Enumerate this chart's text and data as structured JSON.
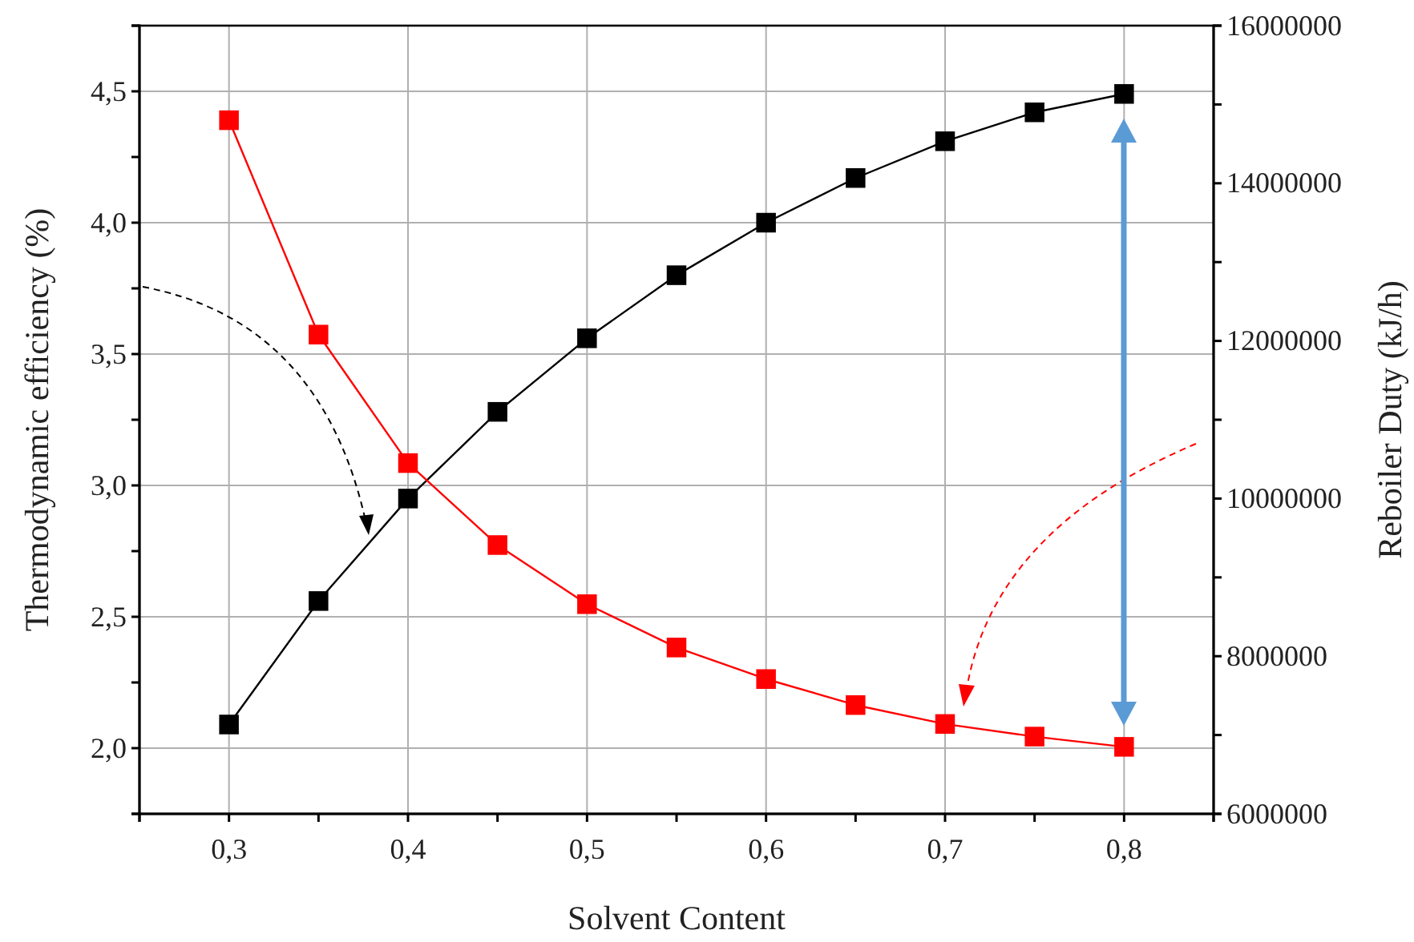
{
  "chart_data": {
    "type": "line",
    "xlabel": "Solvent Content",
    "ylabel": "Thermodynamic efficiency (%)",
    "y2label": "Reboiler Duty (kJ/h)",
    "x": [
      0.3,
      0.35,
      0.4,
      0.45,
      0.5,
      0.55,
      0.6,
      0.65,
      0.7,
      0.75,
      0.8
    ],
    "series": [
      {
        "color": "#000000",
        "values": [
          2.09,
          2.56,
          2.95,
          3.28,
          3.56,
          3.8,
          4.0,
          4.17,
          4.31,
          4.42,
          4.49
        ]
      },
      {
        "color": "#ff0000",
        "axis": "y2",
        "values": [
          14800000,
          12080000,
          10450000,
          9410000,
          8660000,
          8110000,
          7710000,
          7380000,
          7140000,
          6980000,
          6850000
        ]
      }
    ],
    "xlim": [
      0.25,
      0.85
    ],
    "xticks": [
      {
        "value": 0.25,
        "label": null
      },
      {
        "value": 0.3,
        "label": "0,3"
      },
      {
        "value": 0.35,
        "label": null
      },
      {
        "value": 0.4,
        "label": "0,4"
      },
      {
        "value": 0.45,
        "label": null
      },
      {
        "value": 0.5,
        "label": "0,5"
      },
      {
        "value": 0.55,
        "label": null
      },
      {
        "value": 0.6,
        "label": "0,6"
      },
      {
        "value": 0.65,
        "label": null
      },
      {
        "value": 0.7,
        "label": "0,7"
      },
      {
        "value": 0.75,
        "label": null
      },
      {
        "value": 0.8,
        "label": "0,8"
      },
      {
        "value": 0.85,
        "label": null
      }
    ],
    "ylim": [
      1.75,
      4.75
    ],
    "yticks": [
      {
        "value": 1.75,
        "label": null
      },
      {
        "value": 2.0,
        "label": "2,0"
      },
      {
        "value": 2.25,
        "label": null
      },
      {
        "value": 2.5,
        "label": "2,5"
      },
      {
        "value": 2.75,
        "label": null
      },
      {
        "value": 3.0,
        "label": "3,0"
      },
      {
        "value": 3.25,
        "label": null
      },
      {
        "value": 3.5,
        "label": "3,5"
      },
      {
        "value": 3.75,
        "label": null
      },
      {
        "value": 4.0,
        "label": "4,0"
      },
      {
        "value": 4.25,
        "label": null
      },
      {
        "value": 4.5,
        "label": "4,5"
      },
      {
        "value": 4.75,
        "label": null
      }
    ],
    "y2lim": [
      6000000,
      16000000
    ],
    "y2ticks": [
      6000000,
      {
        "value": 7000000,
        "label": null
      },
      8000000,
      {
        "value": 9000000,
        "label": null
      },
      10000000,
      {
        "value": 11000000,
        "label": null
      },
      12000000,
      {
        "value": 13000000,
        "label": null
      },
      14000000,
      {
        "value": 15000000,
        "label": null
      },
      16000000
    ],
    "grid": true,
    "marker": "square",
    "line_style": "solid"
  }
}
